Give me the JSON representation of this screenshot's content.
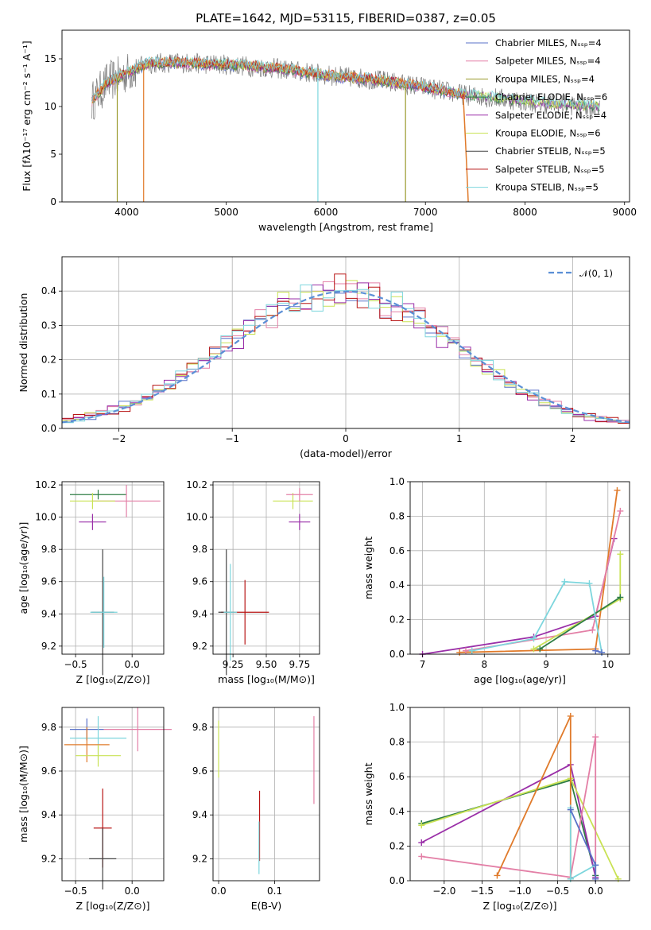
{
  "colors": {
    "chabrier_miles": "#5a72c8",
    "salpeter_miles": "#e37fa6",
    "kroupa_miles": "#9a9a2c",
    "chabrier_elodie": "#2e7d45",
    "salpeter_elodie": "#9a2fa8",
    "kroupa_elodie": "#c9e254",
    "chabrier_stelib": "#444444",
    "salpeter_stelib": "#b81414",
    "kroupa_stelib": "#7dd6dd",
    "orange": "#e07a2a",
    "gauss": "#5b8fd6"
  },
  "chart_data": [
    {
      "id": "spectrum",
      "type": "line",
      "title": "PLATE=1642, MJD=53115, FIBERID=0387, z=0.05",
      "xlabel": "wavelength [Angstrom, rest frame]",
      "ylabel": "Flux [fλ10⁻¹⁷ erg cm⁻² s⁻¹ A⁻¹]",
      "xlim": [
        3350,
        9050
      ],
      "ylim": [
        0,
        18
      ],
      "xticks": [
        "4000",
        "5000",
        "6000",
        "7000",
        "8000",
        "9000"
      ],
      "yticks": [
        "0",
        "5",
        "10",
        "15"
      ],
      "legend_position": "top-right",
      "legend": [
        "Chabrier MILES, Nₛₛₚ=4",
        "Salpeter MILES, Nₛₛₚ=4",
        "Kroupa MILES, Nₛₛₚ=4",
        "Chabrier ELODIE, Nₛₛₚ=6",
        "Salpeter ELODIE, Nₛₛₚ=4",
        "Kroupa ELODIE, Nₛₛₚ=6",
        "Chabrier STELIB, Nₛₛₚ=5",
        "Salpeter STELIB, Nₛₛₚ=5",
        "Kroupa STELIB, Nₛₛₚ=5"
      ],
      "data_points": [
        [
          3650,
          10.5
        ],
        [
          3800,
          12.5
        ],
        [
          4000,
          13.5
        ],
        [
          4200,
          14.5
        ],
        [
          4500,
          14.6
        ],
        [
          5000,
          14.4
        ],
        [
          5500,
          14.0
        ],
        [
          6000,
          13.3
        ],
        [
          6500,
          12.8
        ],
        [
          7000,
          12.0
        ],
        [
          7400,
          11.2
        ],
        [
          7800,
          10.8
        ],
        [
          8200,
          10.3
        ],
        [
          8750,
          10.0
        ]
      ]
    },
    {
      "id": "residuals",
      "type": "histogram",
      "xlabel": "(data-model)/error",
      "ylabel": "Normed distribution",
      "xlim": [
        -2.5,
        2.5
      ],
      "ylim": [
        0,
        0.5
      ],
      "xticks": [
        "−2",
        "−1",
        "0",
        "1",
        "2"
      ],
      "yticks": [
        "0.0",
        "0.1",
        "0.2",
        "0.3",
        "0.4"
      ],
      "legend": [
        "𝒩(0, 1)"
      ],
      "legend_position": "top-right",
      "bin_width": 0.1
    },
    {
      "id": "age-vs-z",
      "type": "errorbar",
      "xlabel": "Z [log₁₀(Z/Z⊙)]",
      "ylabel": "age  [log₁₀(age/yr)]",
      "xlim": [
        -0.62,
        0.28
      ],
      "ylim": [
        9.15,
        10.22
      ],
      "xticks": [
        "−0.5",
        "0.0"
      ],
      "yticks": [
        "9.2",
        "9.4",
        "9.6",
        "9.8",
        "10.0",
        "10.2"
      ],
      "points": [
        {
          "x": -0.3,
          "y": 10.14,
          "ex": 0.25,
          "ey": 0.03
        },
        {
          "x": -0.05,
          "y": 10.1,
          "ex": 0.3,
          "ey": 0.1
        },
        {
          "x": -0.35,
          "y": 10.1,
          "ex": 0.2,
          "ey": 0.05
        },
        {
          "x": -0.35,
          "y": 9.97,
          "ex": 0.12,
          "ey": 0.05
        },
        {
          "x": -0.26,
          "y": 9.41,
          "ex": 0.1,
          "ey": 0.39
        },
        {
          "x": -0.25,
          "y": 9.41,
          "ex": 0.12,
          "ey": 0.22
        }
      ]
    },
    {
      "id": "age-vs-mass",
      "type": "errorbar",
      "xlabel": "mass [log₁₀(M/M⊙)]",
      "ylabel": "",
      "xlim": [
        9.1,
        9.9
      ],
      "ylim": [
        9.15,
        10.22
      ],
      "xticks": [
        "9.25",
        "9.50",
        "9.75"
      ],
      "yticks": [
        "9.2",
        "9.4",
        "9.6",
        "9.8",
        "10.0",
        "10.2"
      ],
      "points": [
        {
          "x": 9.7,
          "y": 10.1,
          "ex": 0.15,
          "ey": 0.05
        },
        {
          "x": 9.75,
          "y": 10.14,
          "ex": 0.1,
          "ey": 0.04
        },
        {
          "x": 9.75,
          "y": 9.97,
          "ex": 0.08,
          "ey": 0.05
        },
        {
          "x": 9.34,
          "y": 9.41,
          "ex": 0.18,
          "ey": 0.2
        },
        {
          "x": 9.2,
          "y": 9.41,
          "ex": 0.06,
          "ey": 0.39
        },
        {
          "x": 9.23,
          "y": 9.41,
          "ex": 0.05,
          "ey": 0.3
        }
      ]
    },
    {
      "id": "weight-vs-age",
      "type": "line",
      "xlabel": "age  [log₁₀(age/yr)]",
      "ylabel": "mass weight",
      "xlim": [
        6.8,
        10.35
      ],
      "ylim": [
        0,
        1.0
      ],
      "xticks": [
        "7",
        "8",
        "9",
        "10"
      ],
      "yticks": [
        "0.0",
        "0.2",
        "0.4",
        "0.6",
        "0.8",
        "1.0"
      ],
      "series": [
        {
          "color": "salpeter_elodie",
          "x": [
            7.0,
            8.8,
            9.8,
            10.1
          ],
          "y": [
            0.0,
            0.1,
            0.22,
            0.67
          ]
        },
        {
          "color": "orange",
          "x": [
            7.6,
            9.8,
            10.15
          ],
          "y": [
            0.01,
            0.03,
            0.95
          ]
        },
        {
          "color": "salpeter_miles",
          "x": [
            7.7,
            9.75,
            10.2
          ],
          "y": [
            0.02,
            0.14,
            0.83
          ]
        },
        {
          "color": "kroupa_elodie",
          "x": [
            8.8,
            10.2,
            10.2
          ],
          "y": [
            0.03,
            0.32,
            0.58
          ]
        },
        {
          "color": "chabrier_elodie",
          "x": [
            8.9,
            10.2
          ],
          "y": [
            0.03,
            0.33
          ]
        },
        {
          "color": "kroupa_stelib",
          "x": [
            7.8,
            8.8,
            9.3,
            9.7,
            9.9
          ],
          "y": [
            0.02,
            0.09,
            0.42,
            0.41,
            0.01
          ]
        },
        {
          "color": "chabrier_miles",
          "x": [
            9.8,
            9.9
          ],
          "y": [
            0.02,
            0.01
          ]
        }
      ]
    },
    {
      "id": "mass-vs-z",
      "type": "errorbar",
      "xlabel": "Z [log₁₀(Z/Z⊙)]",
      "ylabel": "mass [log₁₀(M/M⊙)]",
      "xlim": [
        -0.62,
        0.28
      ],
      "ylim": [
        9.1,
        9.89
      ],
      "xticks": [
        "−0.5",
        "0.0"
      ],
      "yticks": [
        "9.2",
        "9.4",
        "9.6",
        "9.8"
      ],
      "points": [
        {
          "x": -0.4,
          "y": 9.79,
          "ex": 0.15,
          "ey": 0.05
        },
        {
          "x": 0.05,
          "y": 9.79,
          "ex": 0.3,
          "ey": 0.1
        },
        {
          "x": -0.3,
          "y": 9.75,
          "ex": 0.25,
          "ey": 0.1
        },
        {
          "x": -0.4,
          "y": 9.72,
          "ex": 0.2,
          "ey": 0.08
        },
        {
          "x": -0.3,
          "y": 9.67,
          "ex": 0.2,
          "ey": 0.05
        },
        {
          "x": -0.26,
          "y": 9.34,
          "ex": 0.08,
          "ey": 0.18
        },
        {
          "x": -0.26,
          "y": 9.2,
          "ex": 0.12,
          "ey": 0.14
        }
      ]
    },
    {
      "id": "mass-vs-ebv",
      "type": "errorbar",
      "xlabel": "E(B-V)",
      "ylabel": "",
      "xlim": [
        -0.01,
        0.18
      ],
      "ylim": [
        9.1,
        9.89
      ],
      "xticks": [
        "0.0",
        "0.1"
      ],
      "yticks": [
        "9.2",
        "9.4",
        "9.6",
        "9.8"
      ],
      "points": [
        {
          "x": 0.0,
          "y": 9.7,
          "ex": 0,
          "ey": 0.13
        },
        {
          "x": 0.17,
          "y": 9.65,
          "ex": 0,
          "ey": 0.2
        },
        {
          "x": 0.073,
          "y": 9.35,
          "ex": 0,
          "ey": 0.16
        },
        {
          "x": 0.072,
          "y": 9.25,
          "ex": 0,
          "ey": 0.12
        }
      ]
    },
    {
      "id": "weight-vs-z",
      "type": "line",
      "xlabel": "Z [log₁₀(Z/Z⊙)]",
      "ylabel": "mass weight",
      "xlim": [
        -2.45,
        0.45
      ],
      "ylim": [
        0,
        1.0
      ],
      "xticks": [
        "−2.0",
        "−1.5",
        "−1.0",
        "−0.5",
        "0.0"
      ],
      "yticks": [
        "0.0",
        "0.2",
        "0.4",
        "0.6",
        "0.8",
        "1.0"
      ],
      "series": [
        {
          "color": "chabrier_elodie",
          "x": [
            -2.3,
            -0.33,
            0.0
          ],
          "y": [
            0.33,
            0.58,
            0.03
          ]
        },
        {
          "color": "salpeter_elodie",
          "x": [
            -2.3,
            -0.33,
            0.0
          ],
          "y": [
            0.22,
            0.67,
            0.02
          ]
        },
        {
          "color": "kroupa_elodie",
          "x": [
            -2.3,
            -0.33,
            0.3
          ],
          "y": [
            0.32,
            0.59,
            0.01
          ]
        },
        {
          "color": "salpeter_miles",
          "x": [
            -2.3,
            -0.33,
            0.0,
            0.0
          ],
          "y": [
            0.14,
            0.02,
            0.83,
            0.01
          ]
        },
        {
          "color": "orange",
          "x": [
            -1.3,
            -0.33,
            -0.33
          ],
          "y": [
            0.03,
            0.95,
            0.01
          ]
        },
        {
          "color": "kroupa_stelib",
          "x": [
            -0.33,
            -0.33,
            0.0
          ],
          "y": [
            0.42,
            0.01,
            0.09
          ]
        },
        {
          "color": "chabrier_miles",
          "x": [
            -0.33,
            0.0,
            0.0
          ],
          "y": [
            0.41,
            0.09,
            0.01
          ]
        }
      ]
    }
  ]
}
